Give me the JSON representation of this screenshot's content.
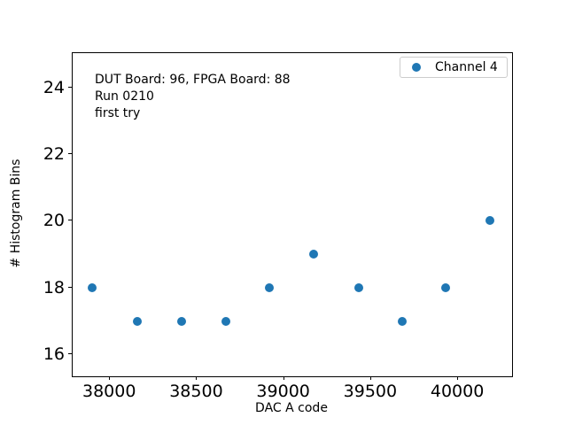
{
  "chart_data": {
    "type": "scatter",
    "title": "",
    "xlabel": "DAC A code",
    "ylabel": "# Histogram Bins",
    "xlim": [
      37785,
      40310
    ],
    "ylim": [
      15.35,
      25.02
    ],
    "x_ticks": [
      38000,
      38500,
      39000,
      39500,
      40000
    ],
    "y_ticks": [
      16,
      18,
      20,
      22,
      24
    ],
    "grid": false,
    "legend": {
      "position": "upper right",
      "entries": [
        "Channel 4"
      ]
    },
    "annotation_lines": [
      "DUT Board: 96, FPGA Board: 88",
      "Run 0210",
      "first try"
    ],
    "series": [
      {
        "name": "Channel 4",
        "marker": "circle",
        "color": "#1f77b4",
        "x": [
          37895,
          38155,
          38410,
          38665,
          38915,
          39170,
          39430,
          39680,
          39930,
          40185
        ],
        "y": [
          18,
          17,
          17,
          17,
          18,
          19,
          18,
          17,
          18,
          20
        ]
      }
    ]
  },
  "colors": {
    "marker_blue": "#1f77b4",
    "axis_black": "#000000",
    "legend_border": "#cccccc",
    "background": "#ffffff"
  }
}
